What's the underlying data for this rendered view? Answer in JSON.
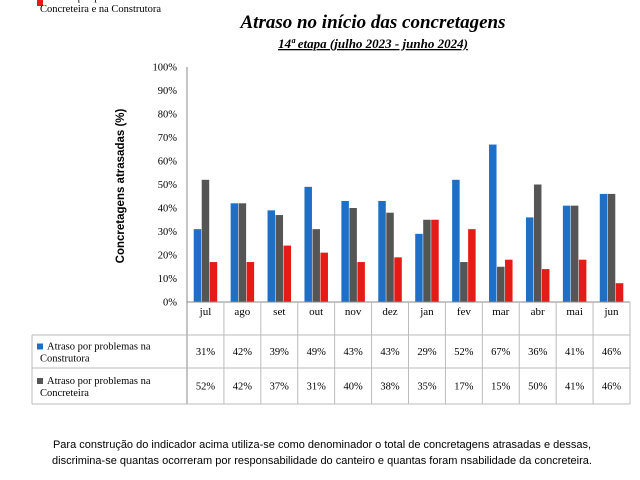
{
  "chart_data": {
    "type": "bar",
    "title": "Atraso no início das concretagens",
    "subtitle": "14ª etapa (julho 2023 - junho 2024)",
    "xlabel": "",
    "ylabel": "Concretagens atrasadas (%)",
    "ylim": [
      0,
      100
    ],
    "yticks": [
      "0%",
      "10%",
      "20%",
      "30%",
      "40%",
      "50%",
      "60%",
      "70%",
      "80%",
      "90%",
      "100%"
    ],
    "grid": false,
    "legend": "data-table-left",
    "categories": [
      "jul",
      "ago",
      "set",
      "out",
      "nov",
      "dez",
      "jan",
      "fev",
      "mar",
      "abr",
      "mai",
      "jun"
    ],
    "series": [
      {
        "name": "Atraso por problemas na Construtora",
        "name_lines": [
          "Atraso por problemas na",
          "Construtora"
        ],
        "color": "#1f6fc6",
        "values": [
          31,
          42,
          39,
          49,
          43,
          43,
          29,
          52,
          67,
          36,
          41,
          46
        ],
        "labels": [
          "31%",
          "42%",
          "39%",
          "49%",
          "43%",
          "43%",
          "29%",
          "52%",
          "67%",
          "36%",
          "41%",
          "46%"
        ]
      },
      {
        "name": "Atraso por problemas na Concreteira",
        "name_lines": [
          "Atraso por problemas na",
          "Concreteira"
        ],
        "color": "#555555",
        "values": [
          52,
          42,
          37,
          31,
          40,
          38,
          35,
          17,
          15,
          50,
          41,
          46
        ],
        "labels": [
          "52%",
          "42%",
          "37%",
          "31%",
          "40%",
          "38%",
          "35%",
          "17%",
          "15%",
          "50%",
          "41%",
          "46%"
        ]
      },
      {
        "name": "Atraso por problemas na Concreteira e na Construtora",
        "name_lines": [
          "Atraso por problemas na",
          "Concreteira e na Construtora"
        ],
        "color": "#e41b17",
        "values": [
          17,
          17,
          24,
          21,
          17,
          19,
          35,
          31,
          18,
          14,
          18,
          8
        ],
        "labels": [
          "17%",
          "17%",
          "24%",
          "21%",
          "17%",
          "19%",
          "35%",
          "31%",
          "18%",
          "14%",
          "18%",
          "8%"
        ]
      }
    ]
  },
  "footnote": {
    "line1": "Para construção do indicador acima utiliza-se como denominador o total de concretagens atrasadas e dessas,",
    "line2": "discrimina-se quantas ocorreram por responsabilidade do canteiro e quantas foram nsabilidade da concreteira."
  }
}
